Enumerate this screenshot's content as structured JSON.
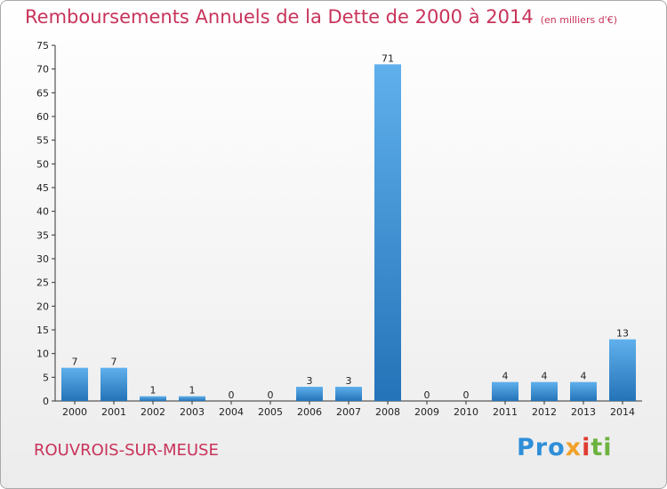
{
  "chart_data": {
    "type": "bar",
    "title": "Remboursements Annuels de la Dette de 2000 à 2014",
    "subtitle": "(en milliers d'€)",
    "categories": [
      "2000",
      "2001",
      "2002",
      "2003",
      "2004",
      "2005",
      "2006",
      "2007",
      "2008",
      "2009",
      "2010",
      "2011",
      "2012",
      "2013",
      "2014"
    ],
    "values": [
      7,
      7,
      1,
      1,
      0,
      0,
      3,
      3,
      71,
      0,
      0,
      4,
      4,
      4,
      13
    ],
    "ylim": [
      0,
      75
    ],
    "yticks": [
      0,
      5,
      10,
      15,
      20,
      25,
      30,
      35,
      40,
      45,
      50,
      55,
      60,
      65,
      70,
      75
    ],
    "grid": false,
    "bar_color": "#3a8fd6"
  },
  "footer": {
    "city": "ROUVROIS-SUR-MEUSE"
  },
  "logo": {
    "text": "Proxiti",
    "part1": "Pro",
    "part2": "x",
    "part3": "i",
    "part4": "ti"
  }
}
